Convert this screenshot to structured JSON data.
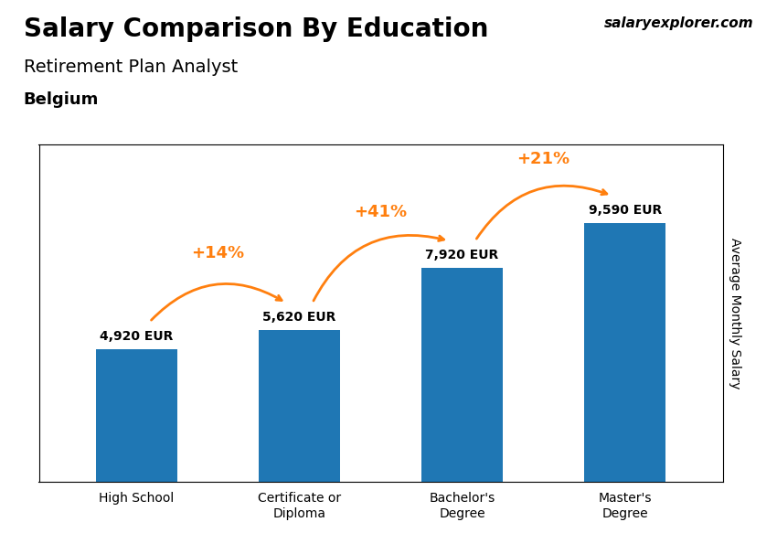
{
  "chart_data": {
    "type": "bar",
    "title": "Salary Comparison By Education",
    "subtitle": "Retirement Plan Analyst",
    "y_label": "Average Monthly Salary",
    "categories": [
      "High School",
      "Certificate or\nDiploma",
      "Bachelor's\nDegree",
      "Master's\nDegree"
    ],
    "values": [
      4920,
      5620,
      7920,
      9590
    ],
    "value_labels": [
      "4,920 EUR",
      "5,620 EUR",
      "7,920 EUR",
      "9,590 EUR"
    ],
    "data_labels": true,
    "ylim": [
      0,
      12500
    ],
    "tick_labels": "x",
    "grid": false,
    "annotations": [
      {
        "text": "+14%",
        "from": "High School",
        "to": "Certificate or\nDiploma"
      },
      {
        "text": "+41%",
        "from": "Certificate or\nDiploma",
        "to": "Bachelor's\nDegree"
      },
      {
        "text": "+21%",
        "from": "Bachelor's\nDegree",
        "to": "Master's\nDegree"
      },
      {
        "text": "Belgium"
      },
      {
        "text": "salaryexplorer.com"
      }
    ]
  }
}
